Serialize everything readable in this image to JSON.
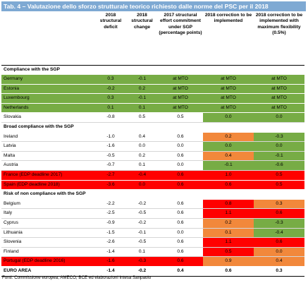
{
  "title": "Tab. 4 – Valutazione dello sforzo strutturale teorico richiesto dalle norme del PSC per il 2018",
  "headers": [
    "",
    "2018 structural deficit",
    "2018 structural change",
    "2017 structural effort commitment under SGP (percentage points)",
    "2018 correction to be implemented",
    "2018 correction to be implemented with maximum flexibility (0.5%)"
  ],
  "colors": {
    "green": "#77ac45",
    "red": "#ff0000",
    "orange": "#f2883b",
    "header": "#7ea9d3"
  },
  "rows": [
    {
      "type": "section",
      "label": "Compliance with the SGP"
    },
    {
      "name": "Germany",
      "cells": [
        "0.3",
        "-0.1",
        "at MTO",
        "at MTO",
        "at MTO"
      ],
      "rowfill": "green"
    },
    {
      "name": "Estonia",
      "cells": [
        "-0.2",
        "0.2",
        "at MTO",
        "at MTO",
        "at MTO"
      ],
      "rowfill": "green"
    },
    {
      "name": "Luxembourg",
      "cells": [
        "0.3",
        "-0.1",
        "at MTO",
        "at MTO",
        "at MTO"
      ],
      "rowfill": "green"
    },
    {
      "name": "Netherlands",
      "cells": [
        "0.1",
        "0.1",
        "at MTO",
        "at MTO",
        "at MTO"
      ],
      "rowfill": "green"
    },
    {
      "name": "Slovakia",
      "cells": [
        "-0.8",
        "0.5",
        "0.5",
        "0.0",
        "0.0"
      ],
      "fills": [
        "",
        "",
        "",
        "green",
        "green"
      ]
    },
    {
      "type": "section",
      "label": "Broad compliance with the SGP"
    },
    {
      "name": "Ireland",
      "cells": [
        "-1.0",
        "0.4",
        "0.6",
        "0.2",
        "-0.3"
      ],
      "fills": [
        "",
        "",
        "",
        "orange",
        "green"
      ]
    },
    {
      "name": "Latvia",
      "cells": [
        "-1.6",
        "0.0",
        "0.0",
        "0.0",
        "0.0"
      ],
      "fills": [
        "",
        "",
        "",
        "green",
        "green"
      ]
    },
    {
      "name": "Malta",
      "cells": [
        "-0.5",
        "0.2",
        "0.6",
        "0.4",
        "-0.1"
      ],
      "fills": [
        "",
        "",
        "",
        "orange",
        "green"
      ]
    },
    {
      "name": "Austria",
      "cells": [
        "-0.7",
        "0.1",
        "0.0",
        "-0.1",
        "-0.6"
      ],
      "fills": [
        "",
        "",
        "",
        "green",
        "green"
      ]
    },
    {
      "name": "France (EDP deadline 2017)",
      "cells": [
        "-2.7",
        "-0.4",
        "0.6",
        "1.0",
        "0.5"
      ],
      "rowfill": "red"
    },
    {
      "name": "Spain (EDP deadline 2018)",
      "cells": [
        "-3.6",
        "0.0",
        "0.6",
        "0.6",
        "0.5"
      ],
      "rowfill": "red"
    },
    {
      "type": "section",
      "label": "Risk of non compliance with the SGP"
    },
    {
      "name": "Belgium",
      "cells": [
        "-2.2",
        "-0.2",
        "0.6",
        "0.8",
        "0.3"
      ],
      "fills": [
        "",
        "",
        "",
        "red",
        "orange"
      ]
    },
    {
      "name": "Italy",
      "cells": [
        "-2.5",
        "-0.5",
        "0.6",
        "1.1",
        "0.6"
      ],
      "fills": [
        "",
        "",
        "",
        "red",
        "red"
      ]
    },
    {
      "name": "Cyprus",
      "cells": [
        "-0.9",
        "-0.2",
        "0.6",
        "0.2",
        "-0.3"
      ],
      "fills": [
        "",
        "",
        "",
        "orange",
        "green"
      ]
    },
    {
      "name": "Lithuania",
      "cells": [
        "-1.5",
        "-0.1",
        "0.0",
        "0.1",
        "-0.4"
      ],
      "fills": [
        "",
        "",
        "",
        "orange",
        "green"
      ]
    },
    {
      "name": "Slovenia",
      "cells": [
        "-2.6",
        "-0.5",
        "0.6",
        "1.1",
        "0.6"
      ],
      "fills": [
        "",
        "",
        "",
        "red",
        "red"
      ]
    },
    {
      "name": "Finland",
      "cells": [
        "-1.4",
        "0.1",
        "0.6",
        "0.5",
        "0.0"
      ],
      "fills": [
        "",
        "",
        "",
        "red",
        "orange"
      ]
    },
    {
      "name": "Portugal (EDP deadline 2016)",
      "cells": [
        "-1.6",
        "-0.3",
        "0.6",
        "0.9",
        "0.4"
      ],
      "rowfill": "red",
      "fills": [
        "",
        "",
        "",
        "orange",
        "orange"
      ]
    },
    {
      "type": "total",
      "name": "EURO AREA",
      "cells": [
        "-1.4",
        "-0.2",
        "0.4",
        "0.6",
        "0.3"
      ]
    }
  ],
  "source": "Fonti: Commissione europea, AMECO, BCE ed elaborazioni Intesa Sanpaolo"
}
